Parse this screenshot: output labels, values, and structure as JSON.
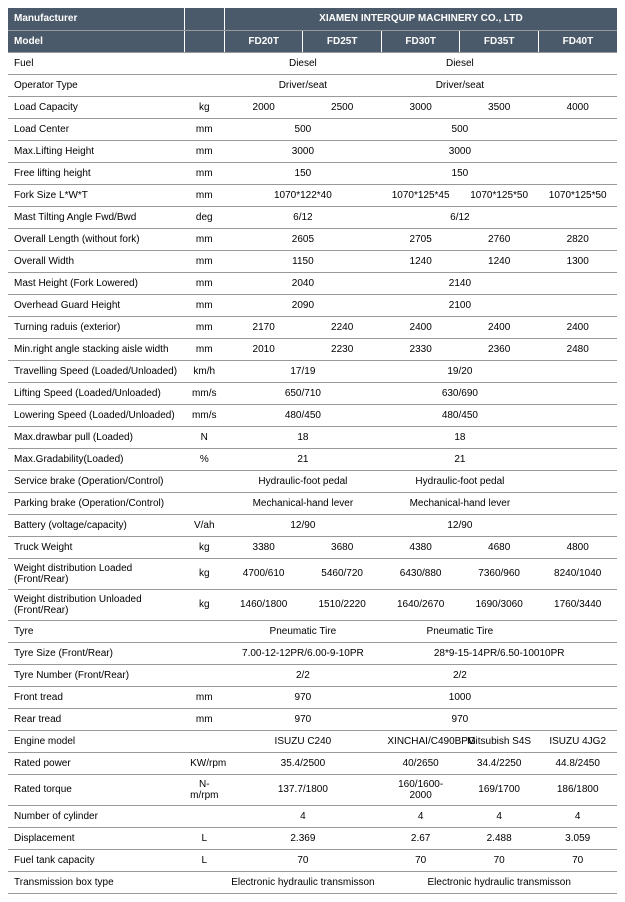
{
  "header": {
    "manufacturer_label": "Manufacturer",
    "manufacturer_value": "XIAMEN INTERQUIP MACHINERY CO., LTD",
    "model_label": "Model",
    "models": [
      "FD20T",
      "FD25T",
      "FD30T",
      "FD35T",
      "FD40T"
    ]
  },
  "rows": {
    "fuel": {
      "label": "Fuel",
      "unit": "",
      "g1": "Diesel",
      "g2": "Diesel",
      "c5": ""
    },
    "operator": {
      "label": "Operator Type",
      "unit": "",
      "g1": "Driver/seat",
      "g2": "Driver/seat",
      "c5": ""
    },
    "load_capacity": {
      "label": "Load Capacity",
      "unit": "kg",
      "c1": "2000",
      "c2": "2500",
      "c3": "3000",
      "c4": "3500",
      "c5": "4000"
    },
    "load_center": {
      "label": "Load Center",
      "unit": "mm",
      "g1": "500",
      "g2": "500",
      "c5": ""
    },
    "max_lift": {
      "label": "Max.Lifting Height",
      "unit": "mm",
      "g1": "3000",
      "g2": "3000",
      "c5": ""
    },
    "free_lift": {
      "label": "Free lifting height",
      "unit": "mm",
      "g1": "150",
      "g2": "150",
      "c5": ""
    },
    "fork_size": {
      "label": "Fork Size  L*W*T",
      "unit": "mm",
      "g1": "1070*122*40",
      "c3": "1070*125*45",
      "c4": "1070*125*50",
      "c5": "1070*125*50"
    },
    "mast_tilt": {
      "label": "Mast Tilting Angle  Fwd/Bwd",
      "unit": "deg",
      "g1": "6/12",
      "g2": "6/12",
      "c5": ""
    },
    "overall_length": {
      "label": "Overall Length (without fork)",
      "unit": "mm",
      "g1": "2605",
      "c3": "2705",
      "c4": "2760",
      "c5": "2820"
    },
    "overall_width": {
      "label": "Overall Width",
      "unit": "mm",
      "g1": "1150",
      "c3": "1240",
      "c4": "1240",
      "c5": "1300"
    },
    "mast_height": {
      "label": "Mast Height (Fork Lowered)",
      "unit": "mm",
      "g1": "2040",
      "g2": "2140",
      "c5": ""
    },
    "guard_height": {
      "label": "Overhead Guard Height",
      "unit": "mm",
      "g1": "2090",
      "g2": "2100",
      "c5": ""
    },
    "turning_radius": {
      "label": "Turning raduis (exterior)",
      "unit": "mm",
      "c1": "2170",
      "c2": "2240",
      "c3": "2400",
      "c4": "2400",
      "c5": "2400"
    },
    "min_aisle": {
      "label": "Min.right angle stacking aisle width",
      "unit": "mm",
      "c1": "2010",
      "c2": "2230",
      "c3": "2330",
      "c4": "2360",
      "c5": "2480"
    },
    "travel_speed": {
      "label": "Travelling Speed (Loaded/Unloaded)",
      "unit": "km/h",
      "g1": "17/19",
      "g2": "19/20",
      "c5": ""
    },
    "lift_speed": {
      "label": "Lifting Speed (Loaded/Unloaded)",
      "unit": "mm/s",
      "g1": "650/710",
      "g2": "630/690",
      "c5": ""
    },
    "lower_speed": {
      "label": "Lowering Speed (Loaded/Unloaded)",
      "unit": "mm/s",
      "g1": "480/450",
      "g2": "480/450",
      "c5": ""
    },
    "drawbar": {
      "label": "Max.drawbar pull (Loaded)",
      "unit": "N",
      "g1": "18",
      "g2": "18",
      "c5": ""
    },
    "gradability": {
      "label": "Max.Gradability(Loaded)",
      "unit": "%",
      "g1": "21",
      "g2": "21",
      "c5": ""
    },
    "service_brake": {
      "label": "Service brake (Operation/Control)",
      "unit": "",
      "g1": "Hydraulic-foot pedal",
      "g2": "Hydraulic-foot pedal",
      "c5": ""
    },
    "parking_brake": {
      "label": "Parking brake (Operation/Control)",
      "unit": "",
      "g1": "Mechanical-hand lever",
      "g2": "Mechanical-hand lever",
      "c5": ""
    },
    "battery": {
      "label": "Battery (voltage/capacity)",
      "unit": "V/ah",
      "g1": "12/90",
      "g2": "12/90",
      "c5": ""
    },
    "truck_weight": {
      "label": "Truck Weight",
      "unit": "kg",
      "c1": "3380",
      "c2": "3680",
      "c3": "4380",
      "c4": "4680",
      "c5": "4800"
    },
    "weight_loaded": {
      "label": "Weight distribution Loaded (Front/Rear)",
      "unit": "kg",
      "c1": "4700/610",
      "c2": "5460/720",
      "c3": "6430/880",
      "c4": "7360/960",
      "c5": "8240/1040"
    },
    "weight_unloaded": {
      "label": "Weight distribution Unloaded (Front/Rear)",
      "unit": "kg",
      "c1": "1460/1800",
      "c2": "1510/2220",
      "c3": "1640/2670",
      "c4": "1690/3060",
      "c5": "1760/3440"
    },
    "tyre": {
      "label": "Tyre",
      "unit": "",
      "g1": "Pneumatic Tire",
      "g2": "Pneumatic Tire",
      "c5": ""
    },
    "tyre_size": {
      "label": "Tyre Size  (Front/Rear)",
      "unit": "",
      "g1": "7.00-12-12PR/6.00-9-10PR",
      "g2b": "28*9-15-14PR/6.50-10010PR"
    },
    "tyre_number": {
      "label": "Tyre Number  (Front/Rear)",
      "unit": "",
      "g1": "2/2",
      "g2": "2/2",
      "c5": ""
    },
    "front_tread": {
      "label": "Front tread",
      "unit": "mm",
      "g1": "970",
      "g2": "1000",
      "c5": ""
    },
    "rear_tread": {
      "label": "Rear tread",
      "unit": "mm",
      "g1": "970",
      "g2": "970",
      "c5": ""
    },
    "engine": {
      "label": "Engine model",
      "unit": "",
      "g1": "ISUZU C240",
      "c3": "XINCHAI/C490BPG",
      "c4": "Mitsubish S4S",
      "c5": "ISUZU 4JG2"
    },
    "rated_power": {
      "label": "Rated power",
      "unit": "KW/rpm",
      "g1": "35.4/2500",
      "c3": "40/2650",
      "c4": "34.4/2250",
      "c5": "44.8/2450"
    },
    "rated_torque": {
      "label": "Rated torque",
      "unit": "N-m/rpm",
      "g1": "137.7/1800",
      "c3": "160/1600-2000",
      "c4": "169/1700",
      "c5": "186/1800"
    },
    "cylinder": {
      "label": "Number of cylinder",
      "unit": "",
      "g1": "4",
      "c3": "4",
      "c4": "4",
      "c5": "4"
    },
    "displacement": {
      "label": "Displacement",
      "unit": "L",
      "g1": "2.369",
      "c3": "2.67",
      "c4": "2.488",
      "c5": "3.059"
    },
    "fuel_tank": {
      "label": "Fuel tank capacity",
      "unit": "L",
      "g1": "70",
      "c3": "70",
      "c4": "70",
      "c5": "70"
    },
    "transmission": {
      "label": "Transmission box type",
      "unit": "",
      "g1": "Electronic hydraulic transmisson",
      "g2b": "Electronic hydraulic transmisson"
    }
  }
}
